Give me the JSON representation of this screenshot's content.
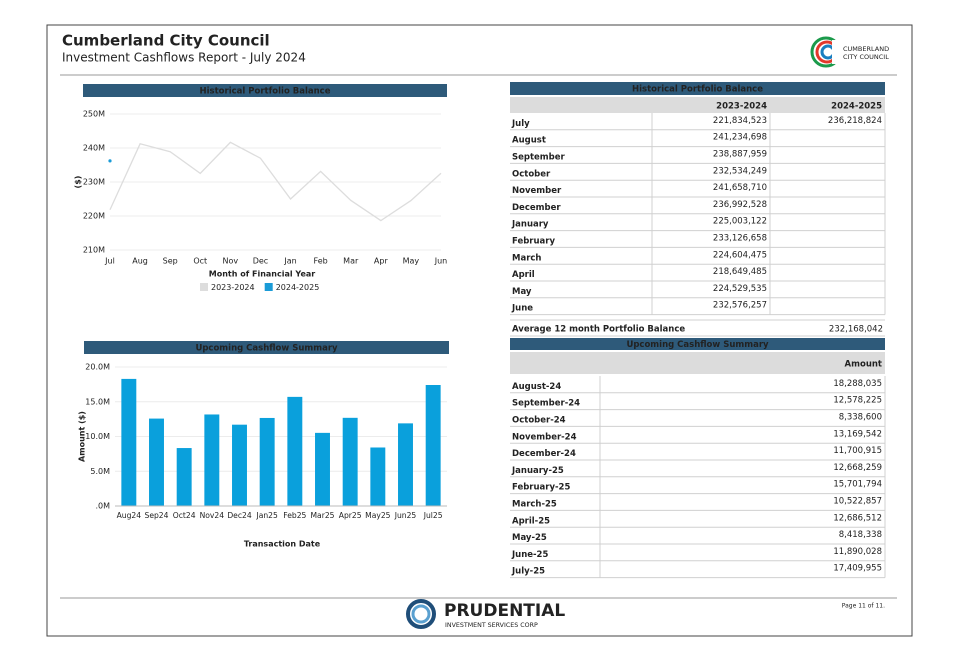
{
  "header": {
    "title": "Cumberland City Council",
    "subtitle": "Investment Cashflows Report - July 2024",
    "logo": [
      "CUMBERLAND",
      "CITY COUNCIL"
    ]
  },
  "chart_data": [
    {
      "type": "line",
      "title": "Historical Portfolio Balance",
      "x_label": "Month of Financial Year",
      "y_label": "($)",
      "categories": [
        "Jul",
        "Aug",
        "Sep",
        "Oct",
        "Nov",
        "Dec",
        "Jan",
        "Feb",
        "Mar",
        "Apr",
        "May",
        "Jun"
      ],
      "series": [
        {
          "name": "2023-2024",
          "color": "#dddddd",
          "values": [
            221834523,
            241234698,
            238887959,
            232534249,
            241658710,
            236992528,
            225003122,
            233126658,
            224604475,
            218649485,
            224529535,
            232576257
          ]
        },
        {
          "name": "2024-2025",
          "color": "#1a9bd7",
          "values": [
            236218824,
            null,
            null,
            null,
            null,
            null,
            null,
            null,
            null,
            null,
            null,
            null
          ]
        }
      ],
      "ylim": [
        210000000,
        250000000
      ],
      "yticks": [
        {
          "value": 210000000,
          "label": "210M"
        },
        {
          "value": 220000000,
          "label": "220M"
        },
        {
          "value": 230000000,
          "label": "230M"
        },
        {
          "value": 240000000,
          "label": "240M"
        },
        {
          "value": 250000000,
          "label": "250M"
        }
      ],
      "grid": true
    },
    {
      "type": "bar",
      "title": "Upcoming Cashflow Summary",
      "x_label": "Transaction Date",
      "y_label": "Amount ($)",
      "categories": [
        "Aug24",
        "Sep24",
        "Oct24",
        "Nov24",
        "Dec24",
        "Jan25",
        "Feb25",
        "Mar25",
        "Apr25",
        "May25",
        "Jun25",
        "Jul25"
      ],
      "values": [
        18288035,
        12578225,
        8338600,
        13169542,
        11700915,
        12668259,
        15701794,
        10522857,
        12686512,
        8418338,
        11890028,
        17409955
      ],
      "color": "#0aa0dc",
      "ylim": [
        0,
        20000000
      ],
      "yticks": [
        {
          "value": 0,
          "label": ".0M"
        },
        {
          "value": 5000000,
          "label": "5.0M"
        },
        {
          "value": 10000000,
          "label": "10.0M"
        },
        {
          "value": 15000000,
          "label": "15.0M"
        },
        {
          "value": 20000000,
          "label": "20.0M"
        }
      ],
      "grid": true
    }
  ],
  "tables": [
    {
      "title": "Historical Portfolio Balance",
      "columns": [
        "2023-2024",
        "2024-2025"
      ],
      "rows": [
        [
          "July",
          "221,834,523",
          "236,218,824"
        ],
        [
          "August",
          "241,234,698"
        ],
        [
          "September",
          "238,887,959"
        ],
        [
          "October",
          "232,534,249"
        ],
        [
          "November",
          "241,658,710"
        ],
        [
          "December",
          "236,992,528"
        ],
        [
          "January",
          "225,003,122"
        ],
        [
          "February",
          "233,126,658"
        ],
        [
          "March",
          "224,604,475"
        ],
        [
          "April",
          "218,649,485"
        ],
        [
          "May",
          "224,529,535"
        ],
        [
          "June",
          "232,576,257"
        ]
      ],
      "footer": [
        "Average 12 month Portfolio Balance",
        "232,168,042"
      ]
    },
    {
      "title": "Upcoming Cashflow Summary",
      "columns": [
        "Amount"
      ],
      "rows": [
        [
          "August-24",
          "18,288,035"
        ],
        [
          "September-24",
          "12,578,225"
        ],
        [
          "October-24",
          "8,338,600"
        ],
        [
          "November-24",
          "13,169,542"
        ],
        [
          "December-24",
          "11,700,915"
        ],
        [
          "January-25",
          "12,668,259"
        ],
        [
          "February-25",
          "15,701,794"
        ],
        [
          "March-25",
          "10,522,857"
        ],
        [
          "April-25",
          "12,686,512"
        ],
        [
          "May-25",
          "8,418,338"
        ],
        [
          "June-25",
          "11,890,028"
        ],
        [
          "July-25",
          "17,409,955"
        ]
      ]
    }
  ],
  "footer": {
    "brand": "PRUDENTIAL",
    "tagline": "INVESTMENT SERVICES CORP",
    "page": "Page 11 of 11."
  }
}
